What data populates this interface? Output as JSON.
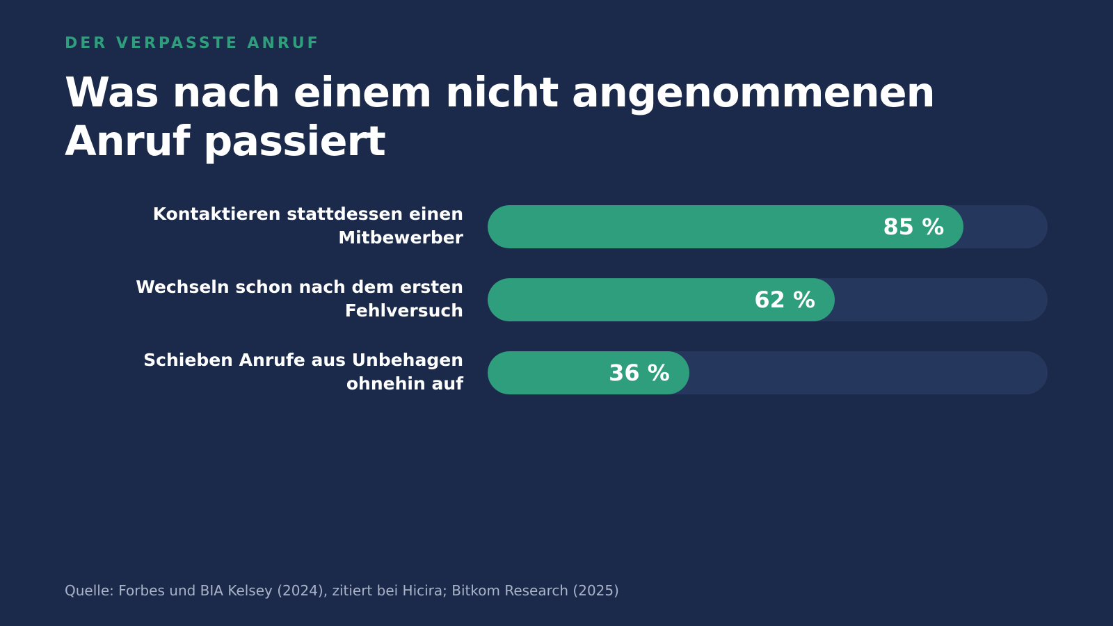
{
  "header": {
    "kicker": "DER VERPASSTE ANRUF",
    "title": "Was nach einem nicht angenommenen Anruf passiert"
  },
  "colors": {
    "background": "#1b2a4a",
    "accent": "#2f9e7c",
    "track": "#26375e",
    "source_text": "#a9b4c9"
  },
  "chart_data": {
    "type": "bar",
    "orientation": "horizontal",
    "categories": [
      "Kontaktieren stattdessen einen Mitbewerber",
      "Wechseln schon nach dem ersten Fehlversuch",
      "Schieben Anrufe aus Unbehagen ohnehin auf"
    ],
    "values": [
      85,
      62,
      36
    ],
    "value_labels": [
      "85 %",
      "62 %",
      "36 %"
    ],
    "xlim": [
      0,
      100
    ],
    "unit": "%",
    "grid": false,
    "legend": "none"
  },
  "footer": {
    "source": "Quelle: Forbes und BIA Kelsey (2024), zitiert bei Hicira; Bitkom Research (2025)"
  }
}
